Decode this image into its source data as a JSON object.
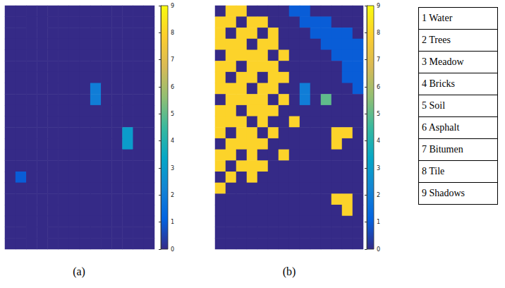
{
  "chart_data": [
    {
      "type": "heatmap",
      "title": "(a)",
      "cells": [
        [
          0,
          0,
          0,
          0,
          0,
          0,
          0,
          0,
          0,
          0,
          0,
          0,
          0,
          0
        ],
        [
          0,
          0,
          0,
          0,
          0,
          0,
          0,
          0,
          0,
          0,
          0,
          0,
          0,
          0
        ],
        [
          0,
          0,
          0,
          0,
          0,
          0,
          0,
          0,
          0,
          0,
          0,
          0,
          0,
          0
        ],
        [
          0,
          0,
          0,
          0,
          0,
          0,
          0,
          0,
          0,
          0,
          0,
          0,
          0,
          0
        ],
        [
          0,
          0,
          0,
          0,
          0,
          0,
          0,
          0,
          0,
          0,
          0,
          0,
          0,
          0
        ],
        [
          0,
          0,
          0,
          0,
          0,
          0,
          0,
          0,
          0,
          0,
          0,
          0,
          0,
          0
        ],
        [
          0,
          0,
          0,
          0,
          0,
          0,
          0,
          0,
          0,
          0,
          0,
          0,
          0,
          0
        ],
        [
          0,
          0,
          0,
          0,
          0,
          0,
          0,
          0,
          2,
          0,
          0,
          0,
          0,
          0
        ],
        [
          0,
          0,
          0,
          0,
          0,
          0,
          0,
          0,
          2,
          0,
          0,
          0,
          0,
          0
        ],
        [
          0,
          0,
          0,
          0,
          0,
          0,
          0,
          0,
          0,
          0,
          0,
          0,
          0,
          0
        ],
        [
          0,
          0,
          0,
          0,
          0,
          0,
          0,
          0,
          0,
          0,
          0,
          0,
          0,
          0
        ],
        [
          0,
          0,
          0,
          0,
          0,
          0,
          0,
          0,
          0,
          0,
          0,
          3,
          0,
          0
        ],
        [
          0,
          0,
          0,
          0,
          0,
          0,
          0,
          0,
          0,
          0,
          0,
          3,
          0,
          0
        ],
        [
          0,
          0,
          0,
          0,
          0,
          0,
          0,
          0,
          0,
          0,
          0,
          0,
          0,
          0
        ],
        [
          0,
          0,
          0,
          0,
          0,
          0,
          0,
          0,
          0,
          0,
          0,
          0,
          0,
          0
        ],
        [
          0,
          1,
          0,
          0,
          0,
          0,
          0,
          0,
          0,
          0,
          0,
          0,
          0,
          0
        ],
        [
          0,
          0,
          0,
          0,
          0,
          0,
          0,
          0,
          0,
          0,
          0,
          0,
          0,
          0
        ],
        [
          0,
          0,
          0,
          0,
          0,
          0,
          0,
          0,
          0,
          0,
          0,
          0,
          0,
          0
        ],
        [
          0,
          0,
          0,
          0,
          0,
          0,
          0,
          0,
          0,
          0,
          0,
          0,
          0,
          0
        ],
        [
          0,
          0,
          0,
          0,
          0,
          0,
          0,
          0,
          0,
          0,
          0,
          0,
          0,
          0
        ],
        [
          0,
          0,
          0,
          0,
          0,
          0,
          0,
          0,
          0,
          0,
          0,
          0,
          0,
          0
        ],
        [
          0,
          0,
          0,
          0,
          0,
          0,
          0,
          0,
          0,
          0,
          0,
          0,
          0,
          0
        ]
      ],
      "colorbar": {
        "range": [
          0,
          9
        ],
        "ticks": [
          0,
          1,
          2,
          3,
          4,
          5,
          6,
          7,
          8,
          9
        ]
      }
    },
    {
      "type": "heatmap",
      "title": "(b)",
      "cells": [
        [
          0,
          8,
          8,
          0,
          0,
          0,
          0,
          1,
          1,
          0,
          0,
          0,
          0,
          0
        ],
        [
          8,
          8,
          0,
          8,
          8,
          0,
          0,
          0,
          1,
          1,
          1,
          0,
          0,
          0
        ],
        [
          8,
          0,
          8,
          8,
          0,
          8,
          0,
          0,
          0,
          1,
          1,
          1,
          1,
          0
        ],
        [
          8,
          8,
          8,
          0,
          8,
          8,
          0,
          0,
          0,
          0,
          1,
          1,
          1,
          1
        ],
        [
          0,
          8,
          8,
          8,
          8,
          0,
          8,
          0,
          0,
          0,
          0,
          1,
          1,
          1
        ],
        [
          8,
          8,
          0,
          8,
          8,
          8,
          0,
          0,
          0,
          0,
          0,
          0,
          1,
          1
        ],
        [
          8,
          0,
          8,
          8,
          0,
          8,
          8,
          0,
          0,
          0,
          0,
          0,
          1,
          1
        ],
        [
          8,
          8,
          8,
          0,
          8,
          8,
          0,
          0,
          2,
          0,
          0,
          0,
          0,
          1
        ],
        [
          0,
          8,
          8,
          8,
          8,
          0,
          8,
          0,
          2,
          0,
          5,
          0,
          0,
          0
        ],
        [
          8,
          8,
          0,
          8,
          8,
          8,
          0,
          0,
          0,
          0,
          0,
          0,
          0,
          0
        ],
        [
          8,
          8,
          8,
          0,
          8,
          0,
          0,
          8,
          0,
          0,
          0,
          0,
          0,
          0
        ],
        [
          8,
          0,
          8,
          8,
          0,
          8,
          0,
          0,
          0,
          0,
          0,
          8,
          8,
          0
        ],
        [
          0,
          8,
          8,
          8,
          8,
          0,
          0,
          0,
          0,
          0,
          0,
          8,
          0,
          0
        ],
        [
          8,
          8,
          0,
          8,
          0,
          0,
          8,
          0,
          0,
          0,
          0,
          0,
          0,
          0
        ],
        [
          8,
          0,
          8,
          8,
          8,
          0,
          0,
          0,
          0,
          0,
          0,
          0,
          0,
          0
        ],
        [
          0,
          8,
          0,
          8,
          0,
          0,
          0,
          0,
          0,
          0,
          0,
          0,
          0,
          0
        ],
        [
          8,
          0,
          0,
          0,
          0,
          0,
          0,
          0,
          0,
          0,
          0,
          0,
          0,
          0
        ],
        [
          0,
          0,
          0,
          0,
          0,
          0,
          0,
          0,
          0,
          0,
          0,
          8,
          8,
          0
        ],
        [
          0,
          0,
          0,
          0,
          0,
          0,
          0,
          0,
          0,
          0,
          0,
          0,
          8,
          0
        ],
        [
          0,
          0,
          0,
          0,
          0,
          0,
          0,
          0,
          0,
          0,
          0,
          0,
          0,
          0
        ],
        [
          0,
          0,
          0,
          0,
          0,
          0,
          0,
          0,
          0,
          0,
          0,
          0,
          0,
          0
        ],
        [
          0,
          0,
          0,
          0,
          0,
          0,
          0,
          0,
          0,
          0,
          0,
          0,
          0,
          0
        ]
      ],
      "colorbar": {
        "range": [
          0,
          9
        ],
        "ticks": [
          0,
          1,
          2,
          3,
          4,
          5,
          6,
          7,
          8,
          9
        ]
      }
    }
  ],
  "class_table": [
    "1 Water",
    "2 Trees",
    "3 Meadow",
    "4 Bricks",
    "5 Soil",
    "6 Asphalt",
    "7 Bitumen",
    "8 Tile",
    "9 Shadows"
  ]
}
